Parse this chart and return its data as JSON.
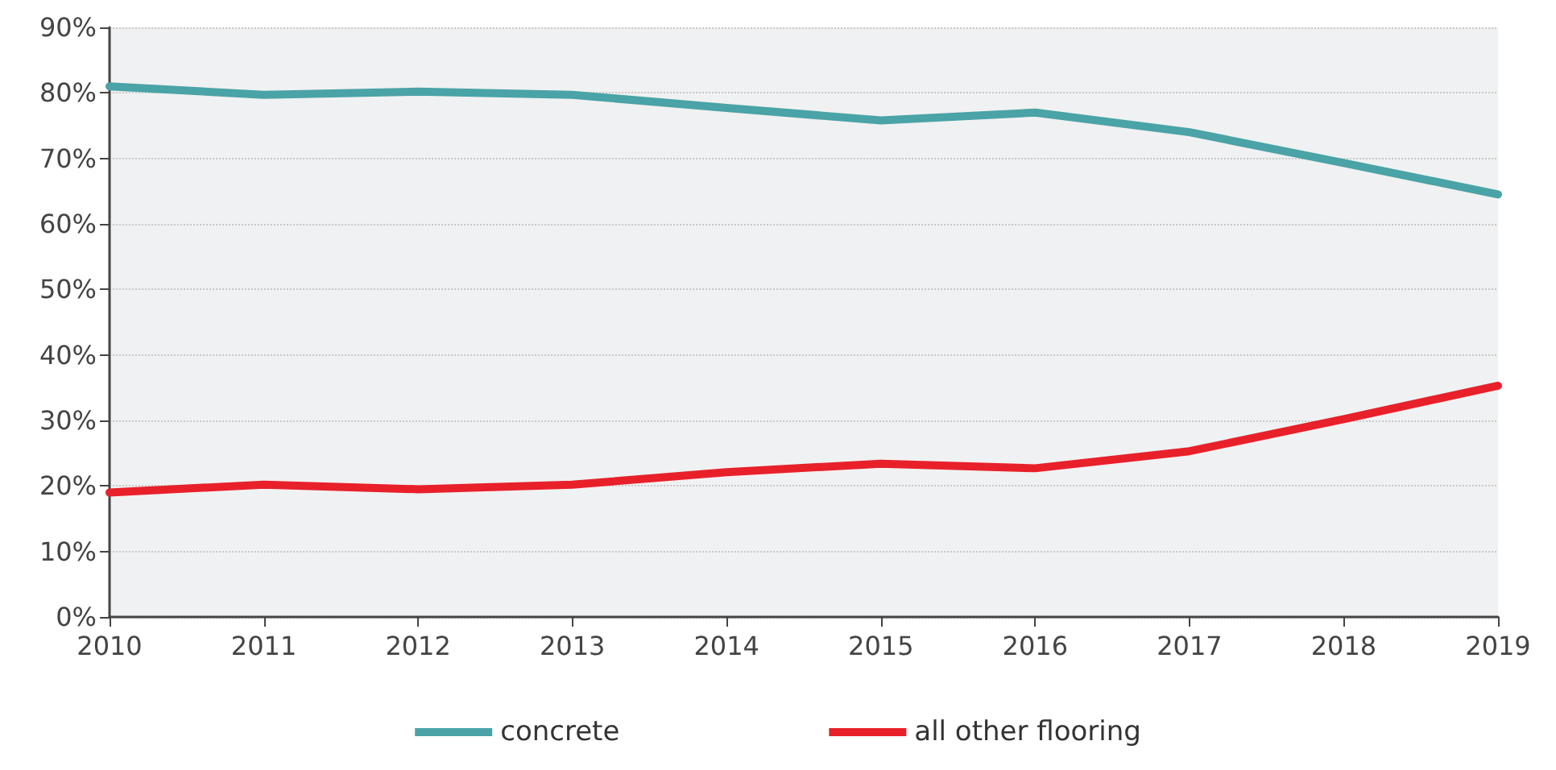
{
  "chart_data": {
    "type": "line",
    "categories": [
      "2010",
      "2011",
      "2012",
      "2013",
      "2014",
      "2015",
      "2016",
      "2017",
      "2018",
      "2019"
    ],
    "series": [
      {
        "name": "concrete",
        "color": "#4aa3a6",
        "values": [
          81,
          79.7,
          80.2,
          79.7,
          77.7,
          75.8,
          77,
          74,
          69.3,
          64.5
        ]
      },
      {
        "name": "all other flooring",
        "color": "#e8202a",
        "values": [
          19,
          20.2,
          19.5,
          20.2,
          22.1,
          23.4,
          22.7,
          25.3,
          30.2,
          35.3
        ]
      }
    ],
    "ylim": [
      0,
      90
    ],
    "yticks": [
      {
        "value": 0,
        "label": "0%"
      },
      {
        "value": 10,
        "label": "10%"
      },
      {
        "value": 20,
        "label": "20%"
      },
      {
        "value": 30,
        "label": "30%"
      },
      {
        "value": 40,
        "label": "40%"
      },
      {
        "value": 50,
        "label": "50%"
      },
      {
        "value": 60,
        "label": "60%"
      },
      {
        "value": 70,
        "label": "70%"
      },
      {
        "value": 80,
        "label": "80%"
      },
      {
        "value": 90,
        "label": "90%"
      }
    ],
    "grid": "y",
    "legend": "bottom",
    "marker": "none",
    "line_style": "solid"
  }
}
